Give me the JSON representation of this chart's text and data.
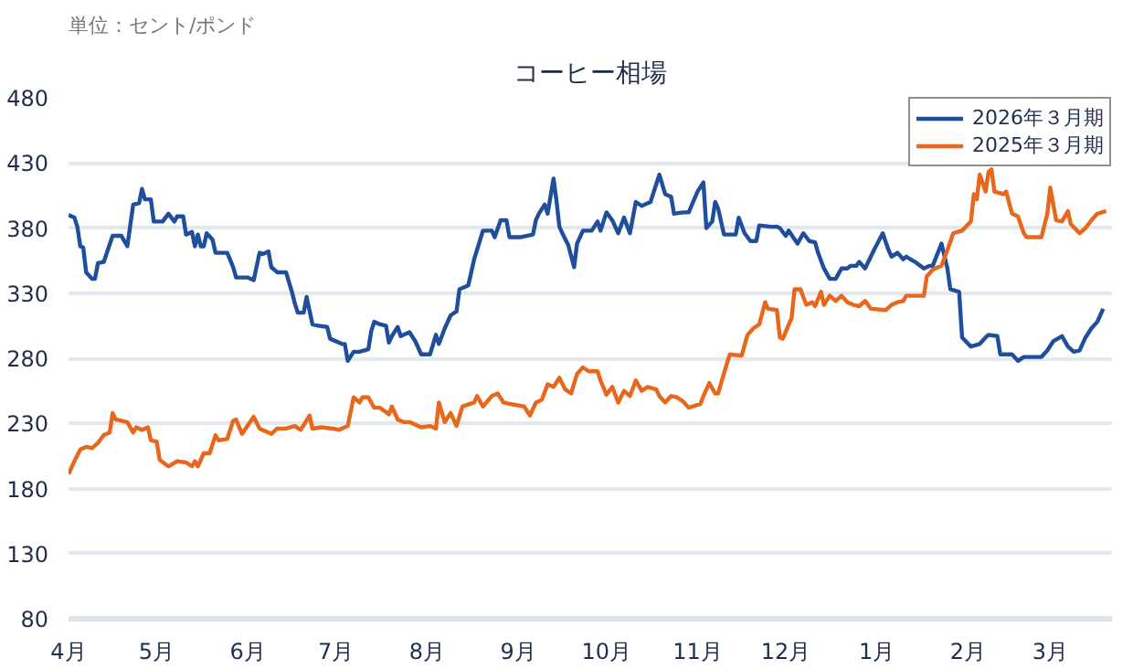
{
  "chart_data": {
    "type": "line",
    "title": "コーヒー相場",
    "annotations": [
      "単位：セント/ポンド"
    ],
    "xlim": [
      "2025-04-01",
      "2026-03-22"
    ],
    "ylim": [
      80,
      480
    ],
    "xticks": [
      {
        "value": "2025-04-01",
        "label": "4月"
      },
      {
        "value": "2025-05-01",
        "label": "5月"
      },
      {
        "value": "2025-06-01",
        "label": "6月"
      },
      {
        "value": "2025-07-01",
        "label": "7月"
      },
      {
        "value": "2025-08-01",
        "label": "8月"
      },
      {
        "value": "2025-09-01",
        "label": "9月"
      },
      {
        "value": "2025-10-01",
        "label": "10月"
      },
      {
        "value": "2025-11-01",
        "label": "11月"
      },
      {
        "value": "2025-12-01",
        "label": "12月"
      },
      {
        "value": "2026-01-01",
        "label": "1月"
      },
      {
        "value": "2026-02-01",
        "label": "2月"
      },
      {
        "value": "2026-03-01",
        "label": "3月"
      }
    ],
    "yticks": [
      80,
      130,
      180,
      230,
      280,
      330,
      380,
      430,
      480
    ],
    "grid": "y",
    "legend": "top right",
    "line_style": "solid",
    "series": [
      {
        "name": "2026年３月期",
        "color": "#1f4e9c",
        "x": [
          "2025-04-01",
          "2025-04-03",
          "2025-04-04",
          "2025-04-05",
          "2025-04-06",
          "2025-04-07",
          "2025-04-09",
          "2025-04-10",
          "2025-04-11",
          "2025-04-13",
          "2025-04-16",
          "2025-04-19",
          "2025-04-21",
          "2025-04-23",
          "2025-04-25",
          "2025-04-26",
          "2025-04-27",
          "2025-04-29",
          "2025-04-30",
          "2025-05-03",
          "2025-05-05",
          "2025-05-07",
          "2025-05-08",
          "2025-05-10",
          "2025-05-11",
          "2025-05-13",
          "2025-05-14",
          "2025-05-15",
          "2025-05-16",
          "2025-05-17",
          "2025-05-18",
          "2025-05-20",
          "2025-05-21",
          "2025-05-25",
          "2025-05-27",
          "2025-05-28",
          "2025-06-01",
          "2025-06-03",
          "2025-06-05",
          "2025-06-06",
          "2025-06-08",
          "2025-06-09",
          "2025-06-11",
          "2025-06-14",
          "2025-06-16",
          "2025-06-17",
          "2025-06-18",
          "2025-06-20",
          "2025-06-21",
          "2025-06-23",
          "2025-06-25",
          "2025-06-28",
          "2025-06-29",
          "2025-07-03",
          "2025-07-04",
          "2025-07-05",
          "2025-07-07",
          "2025-07-09",
          "2025-07-12",
          "2025-07-13",
          "2025-07-14",
          "2025-07-16",
          "2025-07-18",
          "2025-07-19",
          "2025-07-20",
          "2025-07-22",
          "2025-07-23",
          "2025-07-26",
          "2025-07-28",
          "2025-07-30",
          "2025-08-02",
          "2025-08-04",
          "2025-08-05",
          "2025-08-07",
          "2025-08-09",
          "2025-08-11",
          "2025-08-12",
          "2025-08-15",
          "2025-08-17",
          "2025-08-20",
          "2025-08-23",
          "2025-08-24",
          "2025-08-26",
          "2025-08-28",
          "2025-08-29",
          "2025-09-02",
          "2025-09-06",
          "2025-09-07",
          "2025-09-08",
          "2025-09-10",
          "2025-09-11",
          "2025-09-13",
          "2025-09-14",
          "2025-09-15",
          "2025-09-16",
          "2025-09-18",
          "2025-09-20",
          "2025-09-21",
          "2025-09-23",
          "2025-09-26",
          "2025-09-28",
          "2025-09-29",
          "2025-10-01",
          "2025-10-03",
          "2025-10-05",
          "2025-10-07",
          "2025-10-09",
          "2025-10-11",
          "2025-10-13",
          "2025-10-16",
          "2025-10-19",
          "2025-10-21",
          "2025-10-23",
          "2025-10-24",
          "2025-10-27",
          "2025-10-29",
          "2025-11-01",
          "2025-11-03",
          "2025-11-04",
          "2025-11-06",
          "2025-11-07",
          "2025-11-08",
          "2025-11-10",
          "2025-11-14",
          "2025-11-15",
          "2025-11-17",
          "2025-11-19",
          "2025-11-21",
          "2025-11-22",
          "2025-11-26",
          "2025-11-28",
          "2025-11-29",
          "2025-12-01",
          "2025-12-02",
          "2025-12-05",
          "2025-12-07",
          "2025-12-09",
          "2025-12-11",
          "2025-12-12",
          "2025-12-14",
          "2025-12-16",
          "2025-12-18",
          "2025-12-20",
          "2025-12-22",
          "2025-12-23",
          "2025-12-25",
          "2025-12-26",
          "2025-12-28",
          "2025-12-31",
          "2026-01-03",
          "2026-01-05",
          "2026-01-06",
          "2026-01-08",
          "2026-01-10",
          "2026-01-11",
          "2026-01-14",
          "2026-01-17",
          "2026-01-19",
          "2026-01-20",
          "2026-01-23",
          "2026-01-25",
          "2026-01-26",
          "2026-01-29",
          "2026-01-30",
          "2026-02-02",
          "2026-02-05",
          "2026-02-07",
          "2026-02-08",
          "2026-02-11",
          "2026-02-12",
          "2026-02-16",
          "2026-02-18",
          "2026-02-20",
          "2026-02-26",
          "2026-02-28",
          "2026-03-02",
          "2026-03-05",
          "2026-03-07",
          "2026-03-09",
          "2026-03-11",
          "2026-03-13",
          "2026-03-15",
          "2026-03-17",
          "2026-03-18",
          "2026-03-19"
        ],
        "values": [
          390,
          388,
          381,
          366,
          365,
          346,
          341,
          341,
          353,
          354,
          374,
          374,
          366,
          398,
          399,
          410,
          402,
          402,
          385,
          385,
          391,
          385,
          389,
          389,
          375,
          377,
          366,
          375,
          366,
          366,
          376,
          371,
          361,
          361,
          350,
          342,
          342,
          340,
          361,
          360,
          362,
          350,
          346,
          346,
          331,
          322,
          315,
          315,
          327,
          306,
          305,
          304,
          295,
          291,
          291,
          278,
          285,
          285,
          287,
          301,
          308,
          306,
          305,
          292,
          297,
          304,
          297,
          300,
          293,
          283,
          283,
          298,
          291,
          303,
          313,
          316,
          333,
          336,
          356,
          378,
          378,
          373,
          386,
          386,
          373,
          373,
          375,
          386,
          391,
          398,
          391,
          418,
          401,
          381,
          376,
          367,
          350,
          368,
          378,
          378,
          385,
          378,
          392,
          386,
          376,
          388,
          376,
          400,
          397,
          400,
          421,
          406,
          404,
          391,
          392,
          392,
          408,
          415,
          380,
          385,
          400,
          395,
          375,
          375,
          388,
          376,
          370,
          370,
          382,
          381,
          381,
          380,
          374,
          378,
          368,
          376,
          370,
          369,
          361,
          349,
          341,
          341,
          349,
          349,
          351,
          351,
          354,
          349,
          363,
          376,
          363,
          358,
          361,
          356,
          358,
          354,
          349,
          351,
          351,
          368,
          349,
          333,
          331,
          296,
          289,
          291,
          296,
          298,
          297,
          283,
          283,
          278,
          281,
          281,
          286,
          293,
          297,
          289,
          285,
          286,
          296,
          303,
          308,
          313,
          318
        ]
      },
      {
        "name": "2025年３月期",
        "color": "#e8671b",
        "x": [
          "2025-04-01",
          "2025-04-03",
          "2025-04-05",
          "2025-04-07",
          "2025-04-09",
          "2025-04-11",
          "2025-04-13",
          "2025-04-15",
          "2025-04-16",
          "2025-04-17",
          "2025-04-21",
          "2025-04-23",
          "2025-04-24",
          "2025-04-26",
          "2025-04-28",
          "2025-04-29",
          "2025-05-01",
          "2025-05-02",
          "2025-05-05",
          "2025-05-08",
          "2025-05-11",
          "2025-05-13",
          "2025-05-14",
          "2025-05-15",
          "2025-05-17",
          "2025-05-19",
          "2025-05-21",
          "2025-05-22",
          "2025-05-25",
          "2025-05-27",
          "2025-05-28",
          "2025-05-30",
          "2025-06-03",
          "2025-06-05",
          "2025-06-08",
          "2025-06-09",
          "2025-06-11",
          "2025-06-14",
          "2025-06-17",
          "2025-06-19",
          "2025-06-22",
          "2025-06-23",
          "2025-06-26",
          "2025-06-30",
          "2025-07-02",
          "2025-07-05",
          "2025-07-07",
          "2025-07-09",
          "2025-07-10",
          "2025-07-12",
          "2025-07-14",
          "2025-07-16",
          "2025-07-19",
          "2025-07-20",
          "2025-07-22",
          "2025-07-24",
          "2025-07-26",
          "2025-07-27",
          "2025-07-30",
          "2025-08-02",
          "2025-08-04",
          "2025-08-05",
          "2025-08-07",
          "2025-08-09",
          "2025-08-11",
          "2025-08-13",
          "2025-08-17",
          "2025-08-18",
          "2025-08-20",
          "2025-08-23",
          "2025-08-25",
          "2025-08-27",
          "2025-08-29",
          "2025-09-03",
          "2025-09-05",
          "2025-09-07",
          "2025-09-09",
          "2025-09-11",
          "2025-09-13",
          "2025-09-15",
          "2025-09-17",
          "2025-09-19",
          "2025-09-21",
          "2025-09-23",
          "2025-09-25",
          "2025-09-28",
          "2025-09-29",
          "2025-10-01",
          "2025-10-03",
          "2025-10-05",
          "2025-10-07",
          "2025-10-09",
          "2025-10-11",
          "2025-10-13",
          "2025-10-15",
          "2025-10-18",
          "2025-10-19",
          "2025-10-21",
          "2025-10-23",
          "2025-10-25",
          "2025-10-27",
          "2025-10-29",
          "2025-11-02",
          "2025-11-03",
          "2025-11-05",
          "2025-11-07",
          "2025-11-08",
          "2025-11-11",
          "2025-11-12",
          "2025-11-16",
          "2025-11-18",
          "2025-11-20",
          "2025-11-22",
          "2025-11-24",
          "2025-11-25",
          "2025-11-28",
          "2025-11-29",
          "2025-11-30",
          "2025-12-03",
          "2025-12-04",
          "2025-12-06",
          "2025-12-08",
          "2025-12-10",
          "2025-12-11",
          "2025-12-13",
          "2025-12-14",
          "2025-12-16",
          "2025-12-18",
          "2025-12-20",
          "2025-12-22",
          "2025-12-24",
          "2025-12-26",
          "2025-12-28",
          "2025-12-30",
          "2026-01-04",
          "2026-01-06",
          "2026-01-08",
          "2026-01-10",
          "2026-01-11",
          "2026-01-17",
          "2026-01-18",
          "2026-01-20",
          "2026-01-23",
          "2026-01-25",
          "2026-01-27",
          "2026-01-30",
          "2026-02-02",
          "2026-02-03",
          "2026-02-04",
          "2026-02-05",
          "2026-02-07",
          "2026-02-08",
          "2026-02-09",
          "2026-02-10",
          "2026-02-13",
          "2026-02-14",
          "2026-02-16",
          "2026-02-18",
          "2026-02-20",
          "2026-02-21",
          "2026-02-26",
          "2026-02-28",
          "2026-03-01",
          "2026-03-03",
          "2026-03-05",
          "2026-03-07",
          "2026-03-08",
          "2026-03-11",
          "2026-03-13",
          "2026-03-15",
          "2026-03-17",
          "2026-03-20"
        ],
        "values": [
          191,
          201,
          210,
          212,
          211,
          215,
          221,
          223,
          238,
          233,
          231,
          223,
          227,
          225,
          227,
          217,
          216,
          202,
          197,
          201,
          200,
          197,
          201,
          197,
          207,
          207,
          221,
          217,
          218,
          232,
          233,
          222,
          235,
          226,
          223,
          222,
          226,
          226,
          228,
          225,
          236,
          226,
          227,
          226,
          225,
          228,
          250,
          246,
          250,
          250,
          242,
          242,
          237,
          243,
          233,
          231,
          231,
          230,
          227,
          228,
          226,
          246,
          231,
          238,
          228,
          243,
          246,
          251,
          243,
          251,
          253,
          246,
          245,
          243,
          236,
          246,
          248,
          260,
          258,
          265,
          256,
          253,
          268,
          273,
          270,
          270,
          263,
          252,
          258,
          246,
          255,
          251,
          263,
          255,
          258,
          256,
          251,
          246,
          251,
          250,
          247,
          242,
          245,
          251,
          261,
          253,
          253,
          276,
          283,
          282,
          298,
          303,
          306,
          323,
          318,
          317,
          296,
          295,
          311,
          333,
          333,
          321,
          323,
          320,
          331,
          321,
          328,
          324,
          328,
          323,
          321,
          320,
          324,
          318,
          317,
          321,
          323,
          324,
          328,
          328,
          343,
          348,
          351,
          363,
          376,
          378,
          385,
          406,
          402,
          421,
          408,
          423,
          425,
          408,
          406,
          408,
          391,
          389,
          376,
          373,
          373,
          391,
          411,
          386,
          385,
          393,
          383,
          376,
          380,
          386,
          391,
          393
        ]
      }
    ]
  }
}
